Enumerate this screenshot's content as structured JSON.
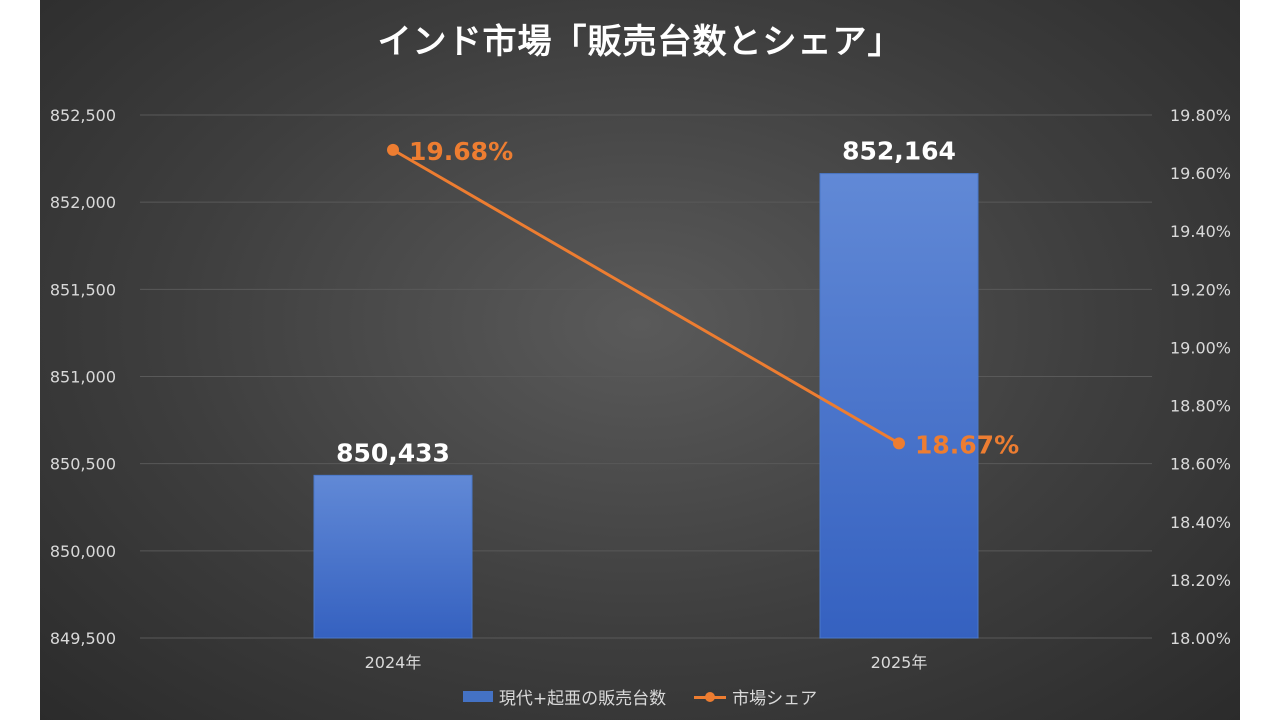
{
  "chart_data": {
    "type": "bar",
    "title": "インド市場「販売台数とシェア」",
    "categories": [
      "2024年",
      "2025年"
    ],
    "series": [
      {
        "name": "現代+起亜の販売台数",
        "type": "bar",
        "axis": "left",
        "values": [
          850433,
          852164
        ],
        "data_labels": [
          "850,433",
          "852,164"
        ],
        "color": "#4472c4"
      },
      {
        "name": "市場シェア",
        "type": "line",
        "axis": "right",
        "values": [
          19.68,
          18.67
        ],
        "data_labels": [
          "19.68%",
          "18.67%"
        ],
        "color": "#ed7d31"
      }
    ],
    "y_left": {
      "ylim": [
        849500,
        852500
      ],
      "ticks": [
        849500,
        850000,
        850500,
        851000,
        851500,
        852000,
        852500
      ],
      "tick_labels": [
        "849,500",
        "850,000",
        "850,500",
        "851,000",
        "851,500",
        "852,000",
        "852,500"
      ]
    },
    "y_right": {
      "ylim": [
        18.0,
        19.8
      ],
      "ticks": [
        18.0,
        18.2,
        18.4,
        18.6,
        18.8,
        19.0,
        19.2,
        19.4,
        19.6,
        19.8
      ],
      "tick_labels": [
        "18.00%",
        "18.20%",
        "18.40%",
        "18.60%",
        "18.80%",
        "19.00%",
        "19.20%",
        "19.40%",
        "19.60%",
        "19.80%"
      ]
    },
    "grid": true,
    "legend": "bottom",
    "background": "#3f3f3f",
    "text_color": "#d9d9d9",
    "gridline_color": "#595959"
  }
}
